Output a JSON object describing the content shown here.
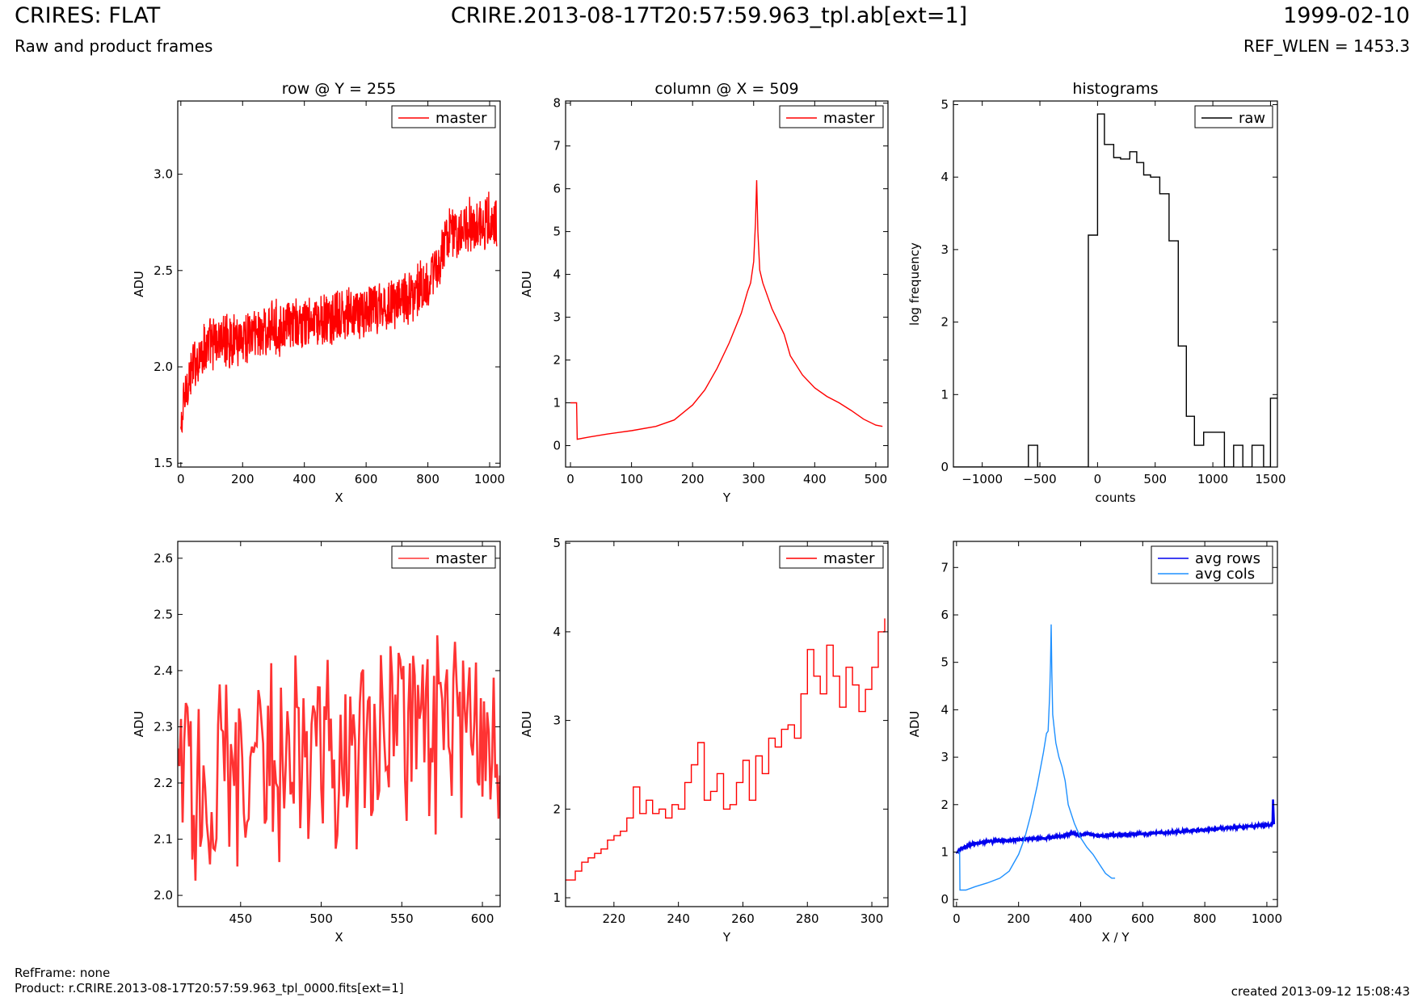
{
  "header": {
    "left_title": "CRIRES: FLAT",
    "left_subtitle": "Raw and product frames",
    "center_title": "CRIRE.2013-08-17T20:57:59.963_tpl.ab[ext=1]",
    "right_date": "1999-02-10",
    "right_subtitle": "REF_WLEN = 1453.3"
  },
  "footer": {
    "ref_frame": "RefFrame: none",
    "product": "Product: r.CRIRE.2013-08-17T20:57:59.963_tpl_0000.fits[ext=1]",
    "created": "created 2013-09-12 15:08:43"
  },
  "colors": {
    "master": "#ff0000",
    "master_zoom": "#ff3333",
    "raw": "#000000",
    "avg_rows": "#0000ee",
    "avg_cols": "#1e90ff"
  },
  "chart_data": [
    {
      "id": "row",
      "type": "line",
      "title": "row @ Y = 255",
      "xlabel": "X",
      "ylabel": "ADU",
      "xlim": [
        -10,
        1034
      ],
      "ylim": [
        1.48,
        3.38
      ],
      "xticks": [
        0,
        200,
        400,
        600,
        800,
        1000
      ],
      "yticks": [
        1.5,
        2.0,
        2.5,
        3.0
      ],
      "ytick_labels": [
        "1.5",
        "2.0",
        "2.5",
        "3.0"
      ],
      "legend": "top-right",
      "series": [
        {
          "name": "master",
          "color": "#ff0000",
          "x": [
            0,
            10,
            20,
            30,
            40,
            60,
            80,
            100,
            150,
            200,
            250,
            300,
            350,
            400,
            450,
            500,
            550,
            600,
            650,
            700,
            750,
            800,
            830,
            850,
            870,
            900,
            950,
            1000,
            1023
          ],
          "y": [
            1.65,
            1.82,
            1.9,
            1.96,
            2.0,
            2.06,
            2.1,
            2.12,
            2.14,
            2.16,
            2.18,
            2.2,
            2.21,
            2.22,
            2.23,
            2.25,
            2.27,
            2.29,
            2.31,
            2.34,
            2.38,
            2.44,
            2.5,
            2.62,
            2.68,
            2.72,
            2.74,
            2.76,
            2.74
          ],
          "noise": 0.16
        }
      ]
    },
    {
      "id": "column",
      "type": "line",
      "title": "column @ X = 509",
      "xlabel": "Y",
      "ylabel": "ADU",
      "xlim": [
        -8,
        520
      ],
      "ylim": [
        -0.5,
        8.05
      ],
      "xticks": [
        0,
        100,
        200,
        300,
        400,
        500
      ],
      "yticks": [
        0,
        1,
        2,
        3,
        4,
        5,
        6,
        7,
        8
      ],
      "legend": "top-right",
      "series": [
        {
          "name": "master",
          "color": "#ff0000",
          "x": [
            0,
            10,
            11,
            30,
            60,
            100,
            140,
            170,
            200,
            220,
            240,
            260,
            280,
            290,
            295,
            300,
            303,
            305,
            307,
            310,
            315,
            320,
            330,
            340,
            350,
            360,
            380,
            400,
            420,
            440,
            460,
            480,
            500,
            511
          ],
          "y": [
            1.0,
            1.0,
            0.15,
            0.2,
            0.27,
            0.35,
            0.45,
            0.6,
            0.95,
            1.3,
            1.8,
            2.4,
            3.1,
            3.6,
            3.8,
            4.3,
            5.2,
            6.2,
            5.0,
            4.1,
            3.8,
            3.6,
            3.2,
            2.9,
            2.6,
            2.1,
            1.65,
            1.35,
            1.15,
            1.0,
            0.82,
            0.62,
            0.48,
            0.45
          ]
        }
      ]
    },
    {
      "id": "hist",
      "type": "line",
      "title": "histograms",
      "xlabel": "counts",
      "ylabel": "log frequency",
      "xlim": [
        -1250,
        1560
      ],
      "ylim": [
        0,
        5.05
      ],
      "xticks": [
        -1000,
        -500,
        0,
        500,
        1000,
        1500
      ],
      "xtick_labels": [
        "−1000",
        "−500",
        "0",
        "500",
        "1000",
        "1500"
      ],
      "yticks": [
        0,
        1,
        2,
        3,
        4,
        5
      ],
      "legend": "top-right",
      "series": [
        {
          "name": "raw",
          "color": "#000000",
          "step": "post",
          "x": [
            -1250,
            -600,
            -520,
            -80,
            0,
            60,
            140,
            200,
            280,
            340,
            400,
            460,
            540,
            620,
            700,
            770,
            840,
            920,
            1000,
            1100,
            1180,
            1260,
            1340,
            1440,
            1500,
            1560
          ],
          "y": [
            0,
            0.3,
            0,
            3.2,
            4.87,
            4.45,
            4.27,
            4.25,
            4.35,
            4.2,
            4.03,
            4.0,
            3.77,
            3.12,
            1.67,
            0.7,
            0.3,
            0.48,
            0.48,
            0,
            0.3,
            0,
            0.3,
            0,
            0.95,
            0.95
          ]
        }
      ]
    },
    {
      "id": "row-zoom",
      "type": "line",
      "title": "",
      "xlabel": "X",
      "ylabel": "ADU",
      "xlim": [
        411,
        611
      ],
      "ylim": [
        1.98,
        2.63
      ],
      "xticks": [
        450,
        500,
        550,
        600
      ],
      "yticks": [
        2.0,
        2.1,
        2.2,
        2.3,
        2.4,
        2.5,
        2.6
      ],
      "ytick_labels": [
        "2.0",
        "2.1",
        "2.2",
        "2.3",
        "2.4",
        "2.5",
        "2.6"
      ],
      "legend": "top-right",
      "series": [
        {
          "name": "master",
          "color": "#ff3333",
          "x": [
            411,
            430,
            450,
            470,
            490,
            510,
            530,
            550,
            570,
            590,
            611
          ],
          "y": [
            2.22,
            2.2,
            2.23,
            2.24,
            2.25,
            2.24,
            2.27,
            2.28,
            2.29,
            2.3,
            2.28
          ],
          "noise": 0.2
        }
      ]
    },
    {
      "id": "column-zoom",
      "type": "line",
      "title": "",
      "xlabel": "Y",
      "ylabel": "ADU",
      "xlim": [
        205,
        305
      ],
      "ylim": [
        0.9,
        5.02
      ],
      "xticks": [
        220,
        240,
        260,
        280,
        300
      ],
      "yticks": [
        1,
        2,
        3,
        4,
        5
      ],
      "legend": "top-right",
      "series": [
        {
          "name": "master",
          "color": "#ff0000",
          "step": "post",
          "x": [
            205,
            208,
            210,
            212,
            214,
            216,
            218,
            220,
            222,
            224,
            226,
            228,
            230,
            232,
            234,
            236,
            238,
            240,
            242,
            244,
            246,
            248,
            250,
            252,
            254,
            256,
            258,
            260,
            262,
            264,
            266,
            268,
            270,
            272,
            274,
            276,
            278,
            280,
            282,
            284,
            286,
            288,
            290,
            292,
            294,
            296,
            298,
            300,
            302,
            304
          ],
          "y": [
            1.2,
            1.3,
            1.4,
            1.45,
            1.5,
            1.55,
            1.65,
            1.7,
            1.75,
            1.9,
            2.25,
            1.95,
            2.1,
            1.95,
            2.0,
            1.9,
            2.05,
            2.0,
            2.3,
            2.5,
            2.75,
            2.1,
            2.2,
            2.4,
            2.0,
            2.05,
            2.3,
            2.55,
            2.1,
            2.6,
            2.4,
            2.8,
            2.7,
            2.9,
            2.95,
            2.8,
            3.3,
            3.8,
            3.5,
            3.3,
            3.85,
            3.5,
            3.15,
            3.6,
            3.4,
            3.1,
            3.35,
            3.6,
            4.0,
            4.15
          ]
        }
      ]
    },
    {
      "id": "avg",
      "type": "line",
      "title": "",
      "xlabel": "X / Y",
      "ylabel": "ADU",
      "xlim": [
        -10,
        1034
      ],
      "ylim": [
        -0.15,
        7.55
      ],
      "xticks": [
        0,
        200,
        400,
        600,
        800,
        1000
      ],
      "yticks": [
        0,
        1,
        2,
        3,
        4,
        5,
        6,
        7
      ],
      "legend": "top-right",
      "series": [
        {
          "name": "avg rows",
          "color": "#0000ee",
          "x": [
            0,
            10,
            30,
            60,
            100,
            200,
            300,
            350,
            370,
            400,
            430,
            450,
            500,
            600,
            700,
            800,
            900,
            1000,
            1018,
            1020,
            1023
          ],
          "y": [
            1.0,
            1.05,
            1.12,
            1.18,
            1.22,
            1.26,
            1.3,
            1.35,
            1.4,
            1.36,
            1.38,
            1.34,
            1.36,
            1.38,
            1.42,
            1.47,
            1.52,
            1.57,
            1.58,
            2.1,
            1.6
          ],
          "noise": 0.03
        },
        {
          "name": "avg cols",
          "color": "#1e90ff",
          "x": [
            0,
            10,
            11,
            30,
            60,
            100,
            140,
            170,
            200,
            220,
            240,
            260,
            280,
            290,
            295,
            300,
            303,
            305,
            307,
            310,
            315,
            320,
            330,
            340,
            350,
            360,
            380,
            400,
            420,
            440,
            460,
            480,
            500,
            511
          ],
          "y": [
            1.0,
            1.0,
            0.2,
            0.2,
            0.27,
            0.35,
            0.45,
            0.6,
            0.95,
            1.3,
            1.8,
            2.4,
            3.1,
            3.5,
            3.55,
            4.3,
            5.0,
            5.8,
            4.8,
            3.9,
            3.6,
            3.3,
            3.0,
            2.8,
            2.5,
            2.0,
            1.6,
            1.3,
            1.1,
            0.95,
            0.75,
            0.55,
            0.45,
            0.45
          ]
        }
      ]
    }
  ]
}
